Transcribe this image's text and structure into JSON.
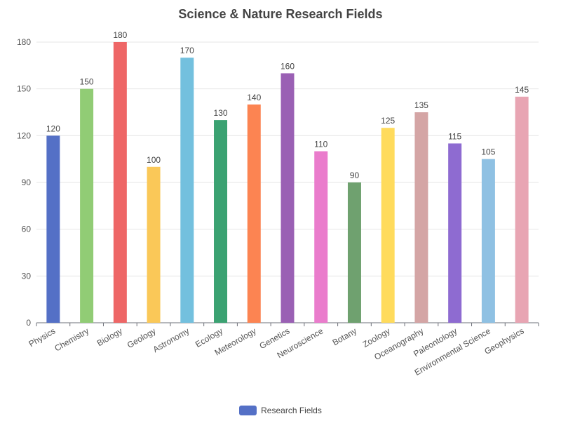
{
  "chart_data": {
    "type": "bar",
    "title": "Science & Nature Research Fields",
    "categories": [
      "Physics",
      "Chemistry",
      "Biology",
      "Geology",
      "Astronomy",
      "Ecology",
      "Meteorology",
      "Genetics",
      "Neuroscience",
      "Botany",
      "Zoology",
      "Oceanography",
      "Paleontology",
      "Environmental Science",
      "Geophysics"
    ],
    "series": [
      {
        "name": "Research Fields",
        "values": [
          120,
          150,
          180,
          100,
          170,
          130,
          140,
          160,
          110,
          90,
          125,
          135,
          115,
          105,
          145
        ]
      }
    ],
    "bar_colors": [
      "#5470c6",
      "#91cc75",
      "#ee6666",
      "#fac858",
      "#73c0de",
      "#3ba272",
      "#fc8452",
      "#9a60b4",
      "#ea7ccc",
      "#6fa16f",
      "#ffdb5c",
      "#d4a5a5",
      "#8e6bd1",
      "#8fc1e3",
      "#e8a5b3"
    ],
    "legend_color": "#5470c6",
    "y_ticks": [
      0,
      30,
      60,
      90,
      120,
      150,
      180
    ],
    "ylim": [
      0,
      180
    ],
    "grid": true,
    "legend_position": "bottom"
  }
}
